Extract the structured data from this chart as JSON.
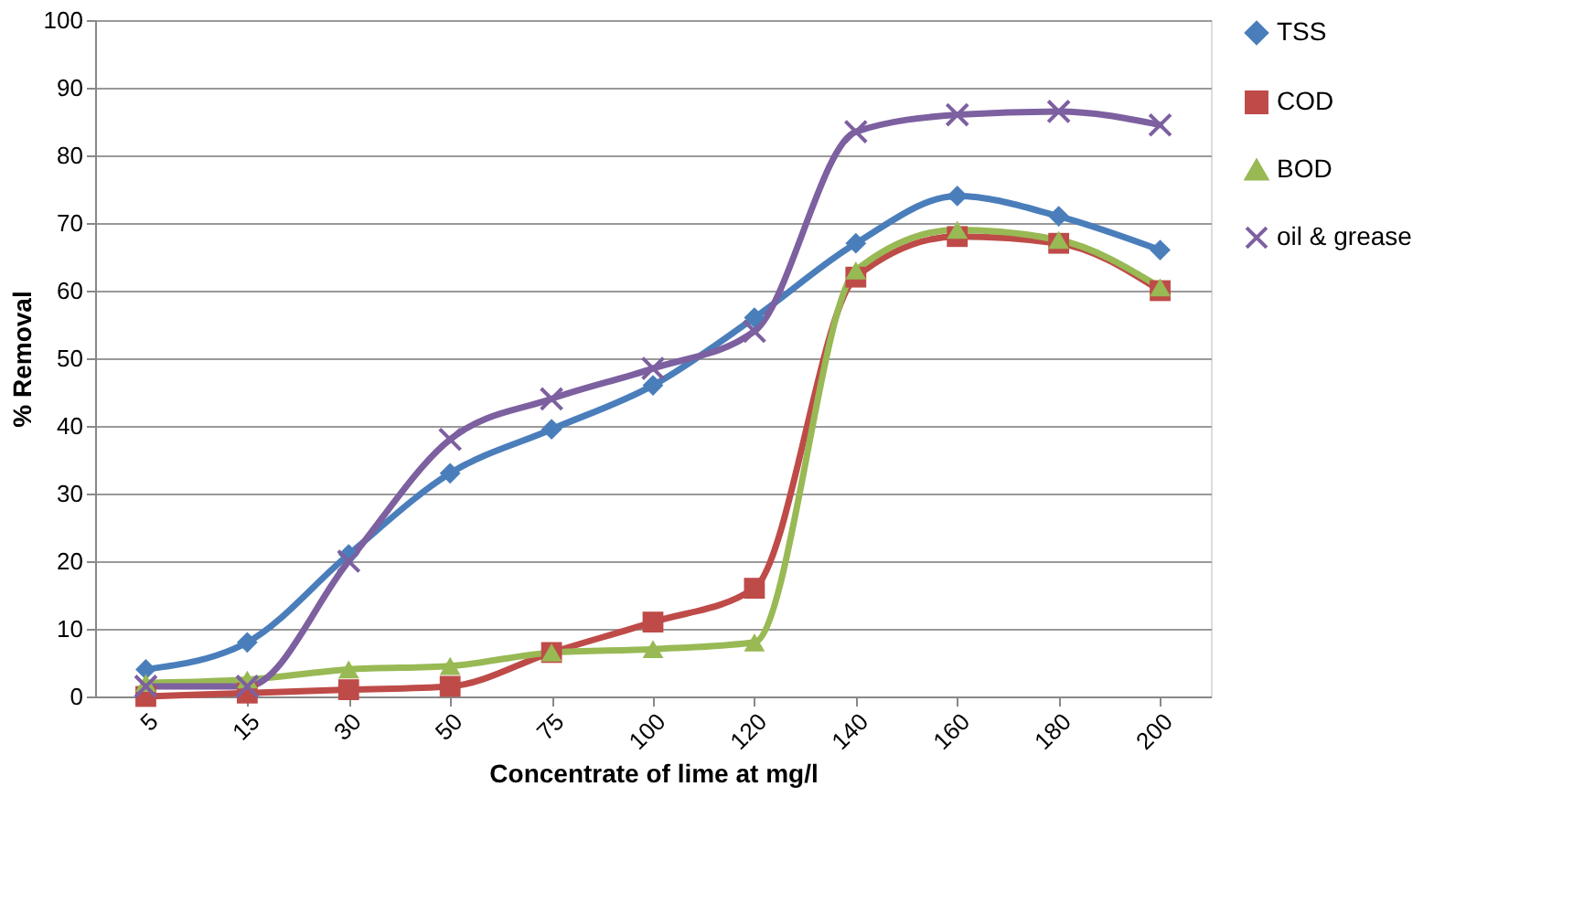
{
  "chart_data": {
    "type": "line",
    "xlabel": "Concentrate  of lime at mg/l",
    "ylabel": "% Removal",
    "categories": [
      "5",
      "15",
      "30",
      "50",
      "75",
      "100",
      "120",
      "140",
      "160",
      "180",
      "200"
    ],
    "series": [
      {
        "name": "TSS",
        "color": "#4a7ebb",
        "marker": "diamond",
        "values": [
          4,
          8,
          21,
          33,
          39.5,
          46,
          56,
          67,
          74,
          71,
          66
        ]
      },
      {
        "name": "COD",
        "color": "#be4b48",
        "marker": "square",
        "values": [
          0,
          0.5,
          1,
          1.5,
          6.5,
          11,
          16,
          62,
          68,
          67,
          60
        ]
      },
      {
        "name": "BOD",
        "color": "#98b954",
        "marker": "triangle",
        "values": [
          2,
          2.5,
          4,
          4.5,
          6.5,
          7,
          8,
          63,
          69,
          67.5,
          60.5
        ]
      },
      {
        "name": "oil & grease",
        "color": "#7d60a0",
        "marker": "cross",
        "values": [
          1.5,
          1.5,
          20,
          38,
          44,
          48.5,
          54,
          83.5,
          86,
          86.5,
          84.5
        ]
      }
    ],
    "ylim": [
      0,
      100
    ],
    "yticks": [
      0,
      10,
      20,
      30,
      40,
      50,
      60,
      70,
      80,
      90,
      100
    ],
    "grid": "y",
    "legend": "right",
    "line_style": "solid"
  }
}
